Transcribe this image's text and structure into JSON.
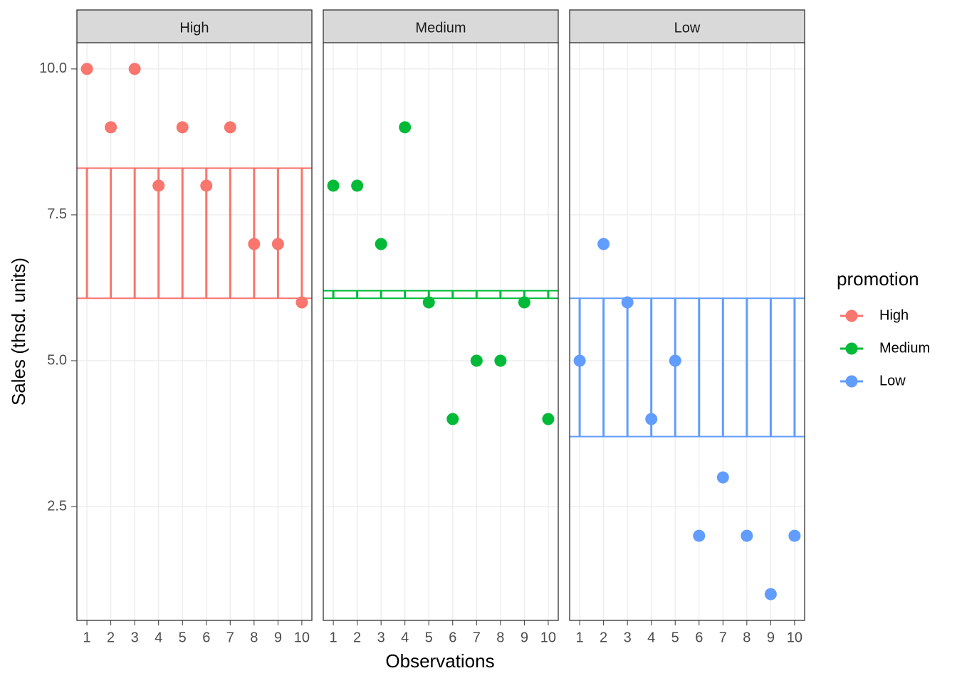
{
  "chart_data": {
    "type": "scatter",
    "xlabel": "Observations",
    "ylabel": "Sales (thsd. units)",
    "legend_title": "promotion",
    "legend_position": "right",
    "x": [
      1,
      2,
      3,
      4,
      5,
      6,
      7,
      8,
      9,
      10
    ],
    "xlim": [
      0.58,
      10.42
    ],
    "xticks": [
      1,
      2,
      3,
      4,
      5,
      6,
      7,
      8,
      9,
      10
    ],
    "ylim": [
      0.55,
      10.45
    ],
    "yticks": [
      2.5,
      {
        "value": 5,
        "label": "5.0"
      },
      7.5,
      {
        "value": 10,
        "label": "10.0"
      }
    ],
    "grid": true,
    "grand_mean": 6.07,
    "series": [
      {
        "name": "High",
        "color": "#F8766D",
        "mean": 8.3,
        "values": [
          10,
          9,
          10,
          8,
          9,
          8,
          9,
          7,
          7,
          6
        ]
      },
      {
        "name": "Medium",
        "color": "#00BA38",
        "mean": 6.2,
        "values": [
          8,
          8,
          7,
          9,
          6,
          4,
          5,
          5,
          6,
          4
        ]
      },
      {
        "name": "Low",
        "color": "#619CFF",
        "mean": 3.7,
        "values": [
          5,
          7,
          6,
          4,
          5,
          2,
          3,
          2,
          1,
          2
        ]
      }
    ]
  }
}
